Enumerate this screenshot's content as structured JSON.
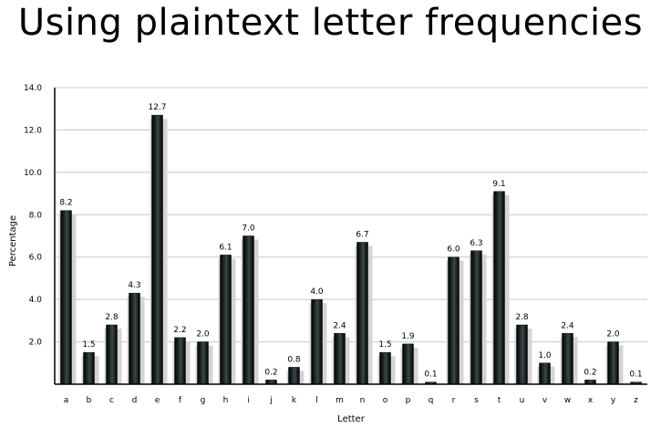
{
  "title": "Using plaintext letter frequencies",
  "chart_data": {
    "type": "bar",
    "title": "Using plaintext letter frequencies",
    "xlabel": "Letter",
    "ylabel": "Percentage",
    "ylim": [
      0,
      14
    ],
    "yticks": [
      "14.0",
      "12.0",
      "10.0",
      "8.0",
      "6.0",
      "4.0",
      "2.0"
    ],
    "categories": [
      "a",
      "b",
      "c",
      "d",
      "e",
      "f",
      "g",
      "h",
      "i",
      "j",
      "k",
      "l",
      "m",
      "n",
      "o",
      "p",
      "q",
      "r",
      "s",
      "t",
      "u",
      "v",
      "w",
      "x",
      "y",
      "z"
    ],
    "values": [
      8.2,
      1.5,
      2.8,
      4.3,
      12.7,
      2.2,
      2.0,
      6.1,
      7.0,
      0.2,
      0.8,
      4.0,
      2.4,
      6.7,
      1.5,
      1.9,
      0.1,
      6.0,
      6.3,
      9.1,
      2.8,
      1.0,
      2.4,
      0.2,
      2.0,
      0.1
    ],
    "labels": [
      "8.2",
      "1.5",
      "2.8",
      "4.3",
      "12.7",
      "2.2",
      "2.0",
      "6.1",
      "7.0",
      "0.2",
      "0.8",
      "4.0",
      "2.4",
      "6.7",
      "1.5",
      "1.9",
      "0.1",
      "6.0",
      "6.3",
      "9.1",
      "2.8",
      "1.0",
      "2.4",
      "0.2",
      "2.0",
      "0.1"
    ],
    "grid": true,
    "bar_color": "#0d1414",
    "shadow_color": "#d4d4d4"
  }
}
